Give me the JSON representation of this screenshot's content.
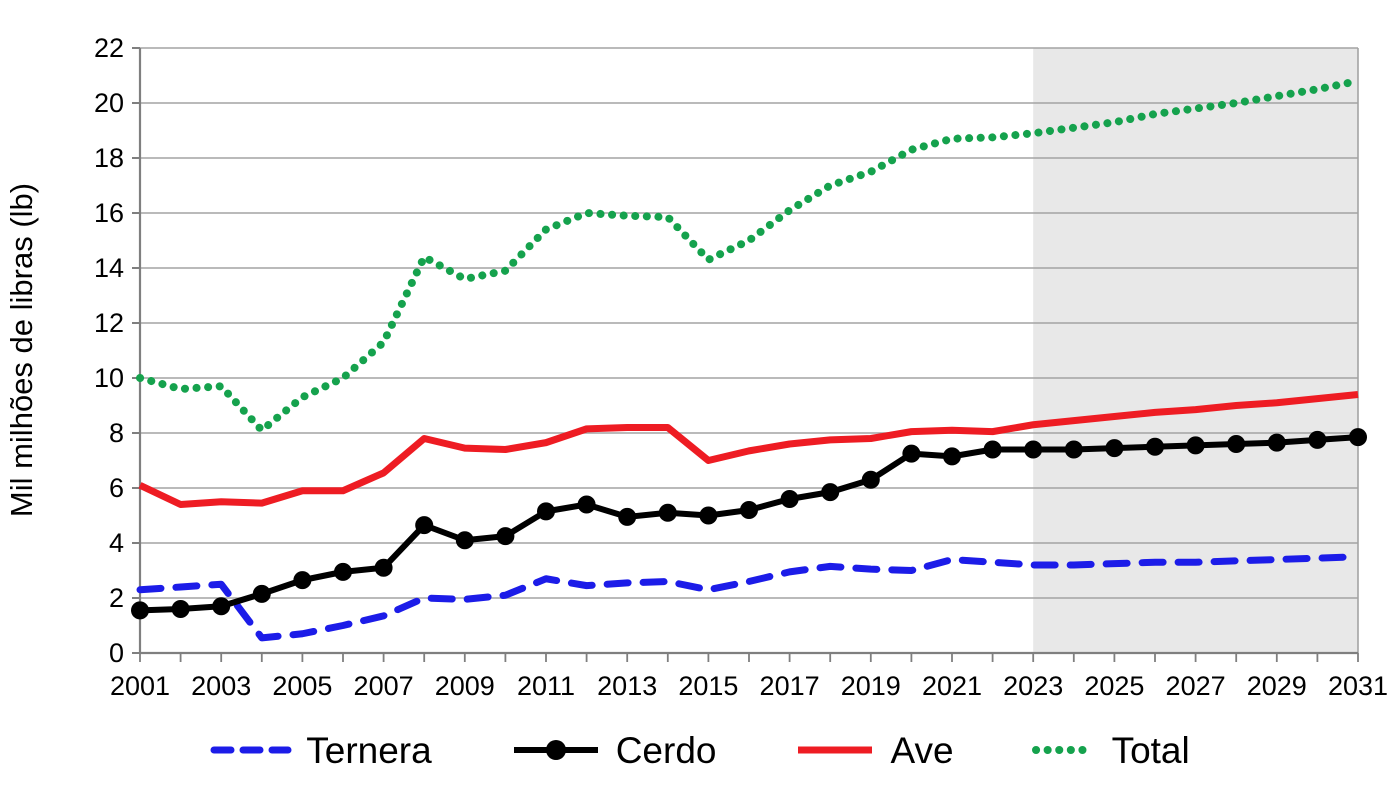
{
  "chart_data": {
    "type": "line",
    "title": "",
    "ylabel": "Mil milhões de libras (lb)",
    "xlabel": "",
    "ylim": [
      0,
      22
    ],
    "ytick_step": 2,
    "ytick_labels": [
      "0",
      "2",
      "4",
      "6",
      "8",
      "10",
      "12",
      "14",
      "16",
      "18",
      "20",
      "22"
    ],
    "x": [
      2001,
      2002,
      2003,
      2004,
      2005,
      2006,
      2007,
      2008,
      2009,
      2010,
      2011,
      2012,
      2013,
      2014,
      2015,
      2016,
      2017,
      2018,
      2019,
      2020,
      2021,
      2022,
      2023,
      2024,
      2025,
      2026,
      2027,
      2028,
      2029,
      2030,
      2031
    ],
    "xtick_labels": [
      "2001",
      "2003",
      "2005",
      "2007",
      "2009",
      "2011",
      "2013",
      "2015",
      "2017",
      "2019",
      "2021",
      "2023",
      "2025",
      "2027",
      "2029",
      "2031"
    ],
    "grid": "horizontal",
    "legend_position": "bottom",
    "projection_start": 2023,
    "projection_shade_color": "#e8e8e8",
    "gridline_color": "#a3a3a3",
    "axis_color": "#7f7f7f",
    "series": [
      {
        "name": "Ternera",
        "style": "dashed",
        "color": "#1c1ce8",
        "values": [
          2.3,
          2.4,
          2.5,
          0.55,
          0.7,
          1.0,
          1.35,
          2.0,
          1.95,
          2.1,
          2.7,
          2.45,
          2.55,
          2.6,
          2.3,
          2.6,
          2.95,
          3.15,
          3.05,
          3.0,
          3.4,
          3.3,
          3.2,
          3.2,
          3.25,
          3.3,
          3.3,
          3.35,
          3.4,
          3.45,
          3.5
        ]
      },
      {
        "name": "Cerdo",
        "style": "solid-marker",
        "color": "#000000",
        "values": [
          1.55,
          1.6,
          1.7,
          2.15,
          2.65,
          2.95,
          3.1,
          4.65,
          4.1,
          4.25,
          5.15,
          5.4,
          4.95,
          5.1,
          5.0,
          5.2,
          5.6,
          5.85,
          6.3,
          7.25,
          7.15,
          7.4,
          7.4,
          7.4,
          7.45,
          7.5,
          7.55,
          7.6,
          7.65,
          7.75,
          7.85
        ]
      },
      {
        "name": "Ave",
        "style": "solid",
        "color": "#ee1c23",
        "values": [
          6.1,
          5.4,
          5.5,
          5.45,
          5.9,
          5.9,
          6.55,
          7.8,
          7.45,
          7.4,
          7.65,
          8.15,
          8.2,
          8.2,
          7.0,
          7.35,
          7.6,
          7.75,
          7.8,
          8.05,
          8.1,
          8.05,
          8.3,
          8.45,
          8.6,
          8.75,
          8.85,
          9.0,
          9.1,
          9.25,
          9.4
        ]
      },
      {
        "name": "Total",
        "style": "dotted",
        "color": "#15a24d",
        "values": [
          10.0,
          9.6,
          9.7,
          8.1,
          9.3,
          10.0,
          11.3,
          14.4,
          13.6,
          13.9,
          15.4,
          16.0,
          15.9,
          15.85,
          14.3,
          15.0,
          16.1,
          17.0,
          17.5,
          18.3,
          18.7,
          18.75,
          18.9,
          19.1,
          19.3,
          19.6,
          19.8,
          20.0,
          20.25,
          20.5,
          20.8
        ]
      }
    ]
  }
}
